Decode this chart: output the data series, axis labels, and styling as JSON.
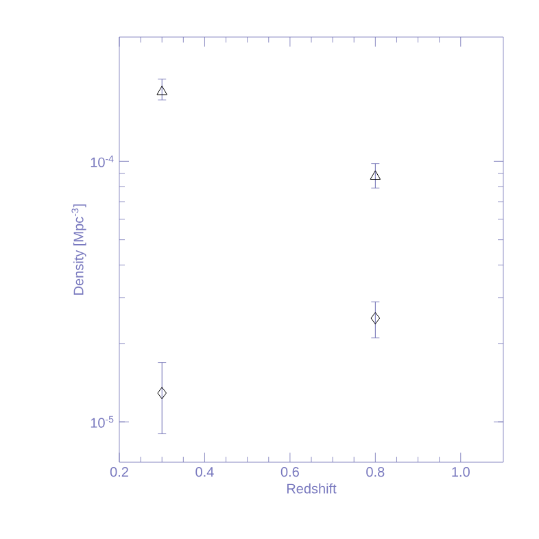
{
  "chart_data": {
    "type": "scatter",
    "xlabel": "Redshift",
    "ylabel": "Density  [Mpc$^{-3}$]",
    "log": "y",
    "xlim": [
      0.2,
      1.1
    ],
    "ylim": [
      7e-06,
      0.0003
    ],
    "xticks": [
      0.2,
      0.4,
      0.6,
      0.8,
      {
        "value": 1.0,
        "label": "1.0"
      }
    ],
    "yticks": [
      {
        "value": 1e-05,
        "label": "10$^{-5}$"
      },
      {
        "value": 0.0001,
        "label": "10$^{-4}$"
      }
    ],
    "grid": false,
    "x": [
      0.3,
      0.8
    ],
    "series": [
      {
        "color": "#000000",
        "marker": "triangle",
        "values": [
          0.000185,
          8.75e-05
        ],
        "errors": [
          [
            0.000172,
            0.000207
          ],
          [
            7.9e-05,
            9.8e-05
          ]
        ]
      },
      {
        "color": "#000000",
        "marker": "diamond",
        "values": [
          1.29e-05,
          2.5e-05
        ],
        "errors": [
          [
            9e-06,
            1.69e-05
          ],
          [
            2.1e-05,
            2.89e-05
          ]
        ]
      }
    ]
  }
}
